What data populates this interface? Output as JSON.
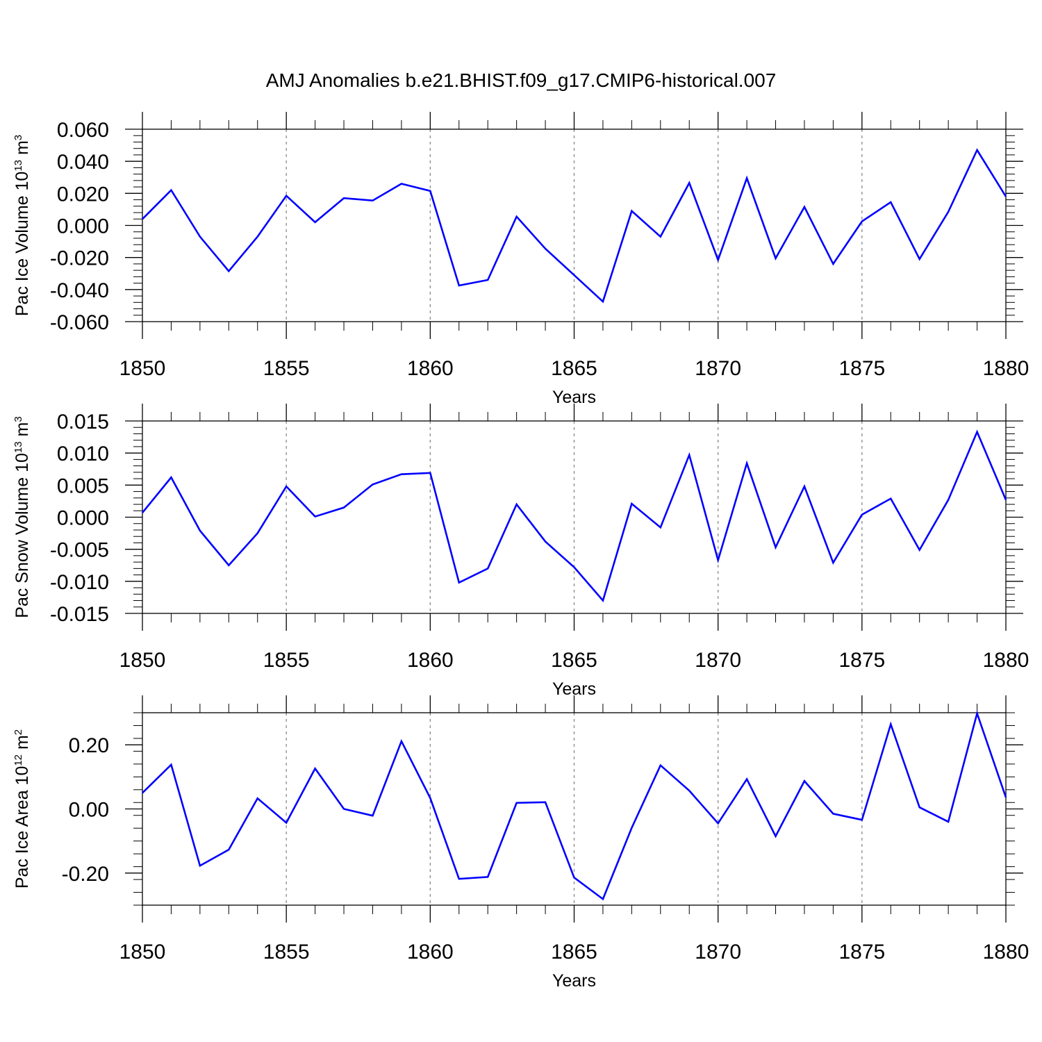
{
  "title": "AMJ Anomalies b.e21.BHIST.f09_g17.CMIP6-historical.007",
  "colors": {
    "series": "#0000ff",
    "axes": "#000000",
    "grid": "#888888"
  },
  "chart_data": [
    {
      "type": "line",
      "ylabel": {
        "text": "Pac Ice Volume 10",
        "exp": "13",
        "unit": " m",
        "unit_exp": "3"
      },
      "xlabel": "Years",
      "xlim": [
        1850,
        1880
      ],
      "ylim": [
        -0.06,
        0.06
      ],
      "grid": "vertical dashed at major x ticks",
      "x_ticks": [
        1850,
        1855,
        1860,
        1865,
        1870,
        1875,
        1880
      ],
      "x_tick_labels": [
        "1850",
        "1855",
        "1860",
        "1865",
        "1870",
        "1875",
        "1880"
      ],
      "y_ticks": [
        -0.06,
        -0.04,
        -0.02,
        0,
        0.02,
        0.04,
        0.06
      ],
      "y_tick_labels": [
        "-0.060",
        "-0.040",
        "-0.020",
        "0.000",
        "0.020",
        "0.040",
        "0.060"
      ],
      "series": [
        {
          "x": [
            1850,
            1851,
            1852,
            1853,
            1854,
            1855,
            1856,
            1857,
            1858,
            1859,
            1860,
            1861,
            1862,
            1863,
            1864,
            1865,
            1866,
            1867,
            1868,
            1869,
            1870,
            1871,
            1872,
            1873,
            1874,
            1875,
            1876,
            1877,
            1878,
            1879,
            1880
          ],
          "values": [
            0.004,
            0.022,
            -0.007,
            -0.0285,
            -0.007,
            0.0185,
            0.002,
            0.017,
            0.0155,
            0.026,
            0.0215,
            -0.0375,
            -0.034,
            0.0055,
            -0.0145,
            -0.031,
            -0.0475,
            0.009,
            -0.007,
            0.0265,
            -0.0215,
            0.0295,
            -0.0205,
            0.0115,
            -0.024,
            0.0025,
            0.0145,
            -0.021,
            0.0085,
            0.047,
            0.018
          ]
        }
      ]
    },
    {
      "type": "line",
      "ylabel": {
        "text": "Pac Snow Volume 10",
        "exp": "13",
        "unit": " m",
        "unit_exp": "3"
      },
      "xlabel": "Years",
      "xlim": [
        1850,
        1880
      ],
      "ylim": [
        -0.015,
        0.015
      ],
      "grid": "vertical dashed at major x ticks",
      "x_ticks": [
        1850,
        1855,
        1860,
        1865,
        1870,
        1875,
        1880
      ],
      "x_tick_labels": [
        "1850",
        "1855",
        "1860",
        "1865",
        "1870",
        "1875",
        "1880"
      ],
      "y_ticks": [
        -0.015,
        -0.01,
        -0.005,
        0,
        0.005,
        0.01,
        0.015
      ],
      "y_tick_labels": [
        "-0.015",
        "-0.010",
        "-0.005",
        "0.000",
        "0.005",
        "0.010",
        "0.015"
      ],
      "series": [
        {
          "x": [
            1850,
            1851,
            1852,
            1853,
            1854,
            1855,
            1856,
            1857,
            1858,
            1859,
            1860,
            1861,
            1862,
            1863,
            1864,
            1865,
            1866,
            1867,
            1868,
            1869,
            1870,
            1871,
            1872,
            1873,
            1874,
            1875,
            1876,
            1877,
            1878,
            1879,
            1880
          ],
          "values": [
            0.0007,
            0.0062,
            -0.0021,
            -0.0075,
            -0.0025,
            0.0048,
            0.0001,
            0.0015,
            0.0051,
            0.0067,
            0.0069,
            -0.0102,
            -0.008,
            0.002,
            -0.0038,
            -0.0078,
            -0.013,
            0.0021,
            -0.0016,
            0.0097,
            -0.0067,
            0.0084,
            -0.0047,
            0.0048,
            -0.0071,
            0.0004,
            0.0029,
            -0.0051,
            0.0027,
            0.0133,
            0.0027
          ]
        }
      ]
    },
    {
      "type": "line",
      "ylabel": {
        "text": "Pac Ice Area 10",
        "exp": "12",
        "unit": " m",
        "unit_exp": "2"
      },
      "xlabel": "Years",
      "xlim": [
        1850,
        1880
      ],
      "ylim": [
        -0.3,
        0.3
      ],
      "grid": "vertical dashed at major x ticks",
      "x_ticks": [
        1850,
        1855,
        1860,
        1865,
        1870,
        1875,
        1880
      ],
      "x_tick_labels": [
        "1850",
        "1855",
        "1860",
        "1865",
        "1870",
        "1875",
        "1880"
      ],
      "y_ticks": [
        -0.2,
        0,
        0.2
      ],
      "y_tick_labels": [
        "-0.20",
        "0.00",
        "0.20"
      ],
      "series": [
        {
          "x": [
            1850,
            1851,
            1852,
            1853,
            1854,
            1855,
            1856,
            1857,
            1858,
            1859,
            1860,
            1861,
            1862,
            1863,
            1864,
            1865,
            1866,
            1867,
            1868,
            1869,
            1870,
            1871,
            1872,
            1873,
            1874,
            1875,
            1876,
            1877,
            1878,
            1879,
            1880
          ],
          "values": [
            0.05,
            0.138,
            -0.177,
            -0.127,
            0.033,
            -0.043,
            0.126,
            0.0,
            -0.021,
            0.211,
            0.034,
            -0.218,
            -0.212,
            0.019,
            0.021,
            -0.214,
            -0.281,
            -0.059,
            0.136,
            0.057,
            -0.045,
            0.093,
            -0.085,
            0.087,
            -0.015,
            -0.034,
            0.264,
            0.005,
            -0.04,
            0.298,
            0.036
          ]
        }
      ]
    }
  ]
}
